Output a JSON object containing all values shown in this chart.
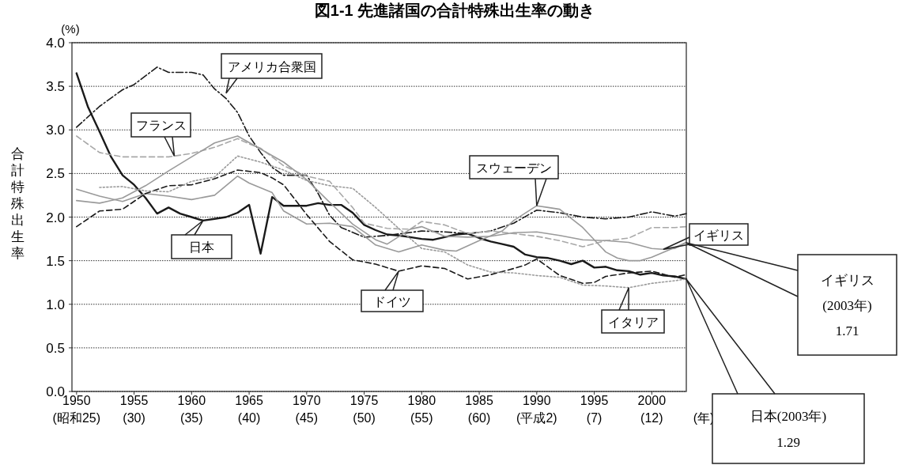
{
  "chart_data": {
    "type": "line",
    "title": "図1-1 先進諸国の合計特殊出生率の動き",
    "ylabel": "合計特殊出生率",
    "xlabel": "(年)",
    "xlim": [
      1949.6,
      2003
    ],
    "ylim": [
      0,
      4
    ],
    "xticks": [
      1950,
      1955,
      1960,
      1965,
      1970,
      1975,
      1980,
      1985,
      1990,
      1995,
      2000
    ],
    "yticks": [
      {
        "value": 0,
        "label": "0.0"
      },
      {
        "value": 0.5,
        "label": "0.5"
      },
      {
        "value": 1,
        "label": "1.0"
      },
      {
        "value": 1.5,
        "label": "1.5"
      },
      {
        "value": 2,
        "label": "2.0"
      },
      {
        "value": 2.5,
        "label": "2.5"
      },
      {
        "value": 3,
        "label": "3.0"
      },
      {
        "value": 3.5,
        "label": "3.5"
      },
      {
        "value": 4,
        "label": "4.0"
      }
    ],
    "grid": "y",
    "marker": "none",
    "series": [
      {
        "color": "#1a1a1a",
        "line_style": "solid",
        "x": [
          1950,
          1951,
          1952,
          1953,
          1954,
          1955,
          1956,
          1957,
          1958,
          1959,
          1960,
          1961,
          1962,
          1963,
          1964,
          1965,
          1966,
          1967,
          1968,
          1969,
          1970,
          1971,
          1972,
          1973,
          1974,
          1975,
          1976,
          1977,
          1978,
          1979,
          1980,
          1981,
          1982,
          1983,
          1984,
          1985,
          1986,
          1987,
          1988,
          1989,
          1990,
          1991,
          1992,
          1993,
          1994,
          1995,
          1996,
          1997,
          1998,
          1999,
          2000,
          2001,
          2002,
          2003
        ],
        "values": [
          3.65,
          3.26,
          2.98,
          2.69,
          2.48,
          2.37,
          2.22,
          2.04,
          2.11,
          2.04,
          2.0,
          1.96,
          1.98,
          2.0,
          2.05,
          2.14,
          1.58,
          2.23,
          2.13,
          2.13,
          2.13,
          2.16,
          2.14,
          2.14,
          2.05,
          1.91,
          1.85,
          1.8,
          1.79,
          1.77,
          1.75,
          1.74,
          1.77,
          1.8,
          1.81,
          1.76,
          1.72,
          1.69,
          1.66,
          1.57,
          1.54,
          1.53,
          1.5,
          1.46,
          1.5,
          1.42,
          1.43,
          1.39,
          1.38,
          1.34,
          1.36,
          1.33,
          1.32,
          1.29
        ]
      },
      {
        "color": "#1a1a1a",
        "line_style": "dashdot",
        "x": [
          1950,
          1952,
          1954,
          1955,
          1957,
          1958,
          1960,
          1961,
          1962,
          1963,
          1964,
          1965,
          1966,
          1967,
          1968,
          1970,
          1971,
          1972,
          1973,
          1975,
          1977,
          1980,
          1982,
          1984,
          1986,
          1988,
          1990,
          1992,
          1994,
          1996,
          1998,
          2000,
          2002,
          2003
        ],
        "values": [
          3.03,
          3.27,
          3.46,
          3.52,
          3.72,
          3.66,
          3.66,
          3.63,
          3.47,
          3.36,
          3.2,
          2.93,
          2.74,
          2.57,
          2.48,
          2.48,
          2.27,
          2.02,
          1.88,
          1.77,
          1.79,
          1.84,
          1.83,
          1.81,
          1.84,
          1.93,
          2.08,
          2.05,
          2.0,
          1.98,
          2.0,
          2.06,
          2.01,
          2.04
        ]
      },
      {
        "color": "#a8a8a8",
        "line_style": "dashed",
        "x": [
          1950,
          1952,
          1954,
          1956,
          1958,
          1960,
          1962,
          1964,
          1965,
          1966,
          1968,
          1970,
          1972,
          1974,
          1975,
          1977,
          1979,
          1980,
          1982,
          1984,
          1986,
          1988,
          1990,
          1992,
          1994,
          1996,
          1998,
          2000,
          2002,
          2003
        ],
        "values": [
          2.93,
          2.74,
          2.69,
          2.69,
          2.69,
          2.73,
          2.8,
          2.9,
          2.84,
          2.79,
          2.59,
          2.47,
          2.41,
          2.11,
          1.93,
          1.87,
          1.86,
          1.95,
          1.91,
          1.81,
          1.84,
          1.81,
          1.78,
          1.73,
          1.66,
          1.73,
          1.76,
          1.88,
          1.88,
          1.89
        ]
      },
      {
        "color": "#9a9a9a",
        "line_style": "solid",
        "x": [
          1950,
          1952,
          1954,
          1956,
          1958,
          1960,
          1962,
          1964,
          1965,
          1967,
          1968,
          1970,
          1972,
          1974,
          1976,
          1978,
          1980,
          1982,
          1983,
          1985,
          1987,
          1988,
          1990,
          1991,
          1992,
          1994,
          1996,
          1997,
          1998,
          1999,
          2000,
          2002,
          2003
        ],
        "values": [
          2.32,
          2.24,
          2.18,
          2.27,
          2.24,
          2.2,
          2.25,
          2.47,
          2.39,
          2.28,
          2.07,
          1.92,
          1.93,
          1.89,
          1.68,
          1.6,
          1.68,
          1.62,
          1.61,
          1.73,
          1.84,
          1.96,
          2.13,
          2.11,
          2.09,
          1.88,
          1.6,
          1.53,
          1.5,
          1.5,
          1.54,
          1.65,
          1.71
        ]
      },
      {
        "color": "#9a9a9a",
        "line_style": "solid",
        "x": [
          1950,
          1952,
          1954,
          1956,
          1958,
          1960,
          1962,
          1964,
          1966,
          1968,
          1970,
          1972,
          1974,
          1976,
          1977,
          1979,
          1980,
          1982,
          1984,
          1986,
          1988,
          1990,
          1992,
          1994,
          1996,
          1998,
          2000,
          2001,
          2002,
          2003
        ],
        "values": [
          2.19,
          2.16,
          2.22,
          2.36,
          2.53,
          2.69,
          2.85,
          2.93,
          2.78,
          2.63,
          2.43,
          2.17,
          1.92,
          1.74,
          1.69,
          1.86,
          1.89,
          1.78,
          1.77,
          1.78,
          1.82,
          1.83,
          1.79,
          1.74,
          1.73,
          1.71,
          1.64,
          1.63,
          1.64,
          1.71
        ]
      },
      {
        "color": "#1a1a1a",
        "line_style": "dashed",
        "x": [
          1950,
          1952,
          1954,
          1956,
          1958,
          1960,
          1962,
          1964,
          1966,
          1967,
          1968,
          1970,
          1972,
          1974,
          1976,
          1978,
          1980,
          1982,
          1984,
          1986,
          1988,
          1989,
          1990,
          1992,
          1994,
          1995,
          1996,
          1998,
          2000,
          2002,
          2003
        ],
        "values": [
          1.89,
          2.07,
          2.09,
          2.27,
          2.36,
          2.37,
          2.44,
          2.54,
          2.51,
          2.45,
          2.37,
          2.03,
          1.72,
          1.51,
          1.46,
          1.38,
          1.44,
          1.41,
          1.29,
          1.34,
          1.41,
          1.45,
          1.52,
          1.33,
          1.24,
          1.25,
          1.32,
          1.36,
          1.38,
          1.31,
          1.34
        ]
      },
      {
        "color": "#9a9a9a",
        "line_style": "dotted",
        "x": [
          1952,
          1954,
          1956,
          1958,
          1960,
          1962,
          1964,
          1966,
          1968,
          1970,
          1972,
          1974,
          1976,
          1978,
          1980,
          1982,
          1984,
          1986,
          1988,
          1990,
          1992,
          1994,
          1996,
          1998,
          2000,
          2002,
          2003
        ],
        "values": [
          2.34,
          2.35,
          2.3,
          2.29,
          2.41,
          2.46,
          2.7,
          2.63,
          2.54,
          2.42,
          2.36,
          2.33,
          2.11,
          1.87,
          1.64,
          1.6,
          1.45,
          1.37,
          1.36,
          1.33,
          1.31,
          1.22,
          1.21,
          1.19,
          1.24,
          1.27,
          1.29
        ]
      }
    ],
    "annotations": [
      "(%)",
      "(昭和25)",
      "(30)",
      "(35)",
      "(40)",
      "(45)",
      "(50)",
      "(55)",
      "(60)",
      "(平成2)",
      "(7)",
      "(12)",
      {
        "text": "アメリカ合衆国",
        "x": 1963,
        "y": 3.42
      },
      {
        "text": "フランス",
        "x": 1958.5,
        "y": 2.7
      },
      {
        "text": "日本",
        "x": 1961,
        "y": 1.96
      },
      {
        "text": "スウェーデン",
        "x": 1990,
        "y": 2.13
      },
      {
        "text": "ドイツ",
        "x": 1978,
        "y": 1.38
      },
      {
        "text": "イタリア",
        "x": 1998,
        "y": 1.19
      },
      {
        "text": "イギリス",
        "x": 2001,
        "y": 1.63
      },
      "イギリス\n(2003年)\n1.71",
      "日本(2003年)\n1.29"
    ]
  }
}
